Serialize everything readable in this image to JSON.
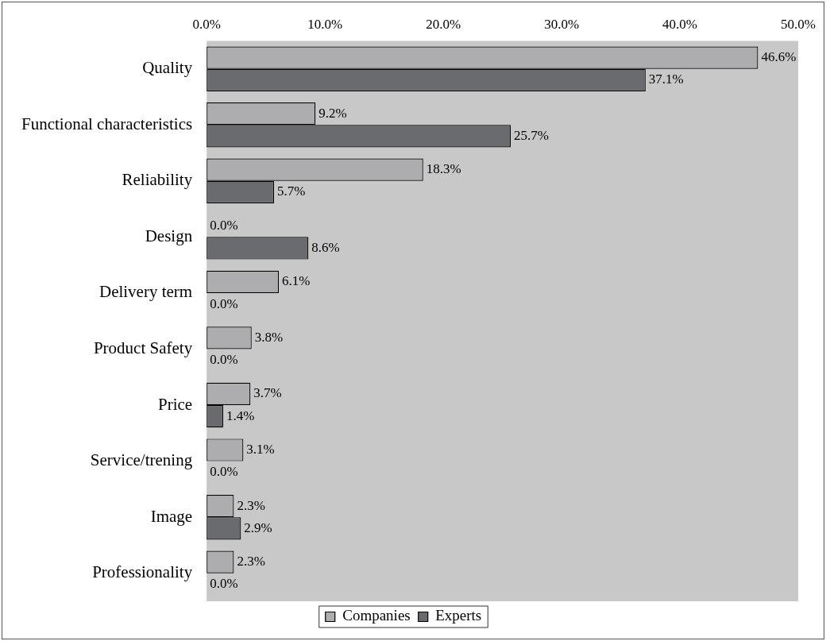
{
  "chart_data": {
    "type": "bar",
    "orientation": "horizontal",
    "categories": [
      "Quality",
      "Functional characteristics",
      "Reliability",
      "Design",
      "Delivery term",
      "Product Safety",
      "Price",
      "Service/trening",
      "Image",
      "Professionality"
    ],
    "series": [
      {
        "name": "Companies",
        "color": "#adadb0",
        "values": [
          46.6,
          9.2,
          18.3,
          0.0,
          6.1,
          3.8,
          3.7,
          3.1,
          2.3,
          2.3
        ],
        "value_labels": [
          "46.6%",
          "9.2%",
          "18.3%",
          "0.0%",
          "6.1%",
          "3.8%",
          "3.7%",
          "3.1%",
          "2.3%",
          "2.3%"
        ]
      },
      {
        "name": "Experts",
        "color": "#6a6b6f",
        "values": [
          37.1,
          25.7,
          5.7,
          8.6,
          0.0,
          0.0,
          1.4,
          0.0,
          2.9,
          0.0
        ],
        "value_labels": [
          "37.1%",
          "25.7%",
          "5.7%",
          "8.6%",
          "0.0%",
          "0.0%",
          "1.4%",
          "0.0%",
          "2.9%",
          "0.0%"
        ]
      }
    ],
    "xlim": [
      0,
      50
    ],
    "xticks": [
      {
        "value": 0,
        "label": "0.0%"
      },
      {
        "value": 10,
        "label": "10.0%"
      },
      {
        "value": 20,
        "label": "20.0%"
      },
      {
        "value": 30,
        "label": "30.0%"
      },
      {
        "value": 40,
        "label": "40.0%"
      },
      {
        "value": 50,
        "label": "50.0%"
      }
    ],
    "grid": false,
    "legend": "bottom"
  }
}
